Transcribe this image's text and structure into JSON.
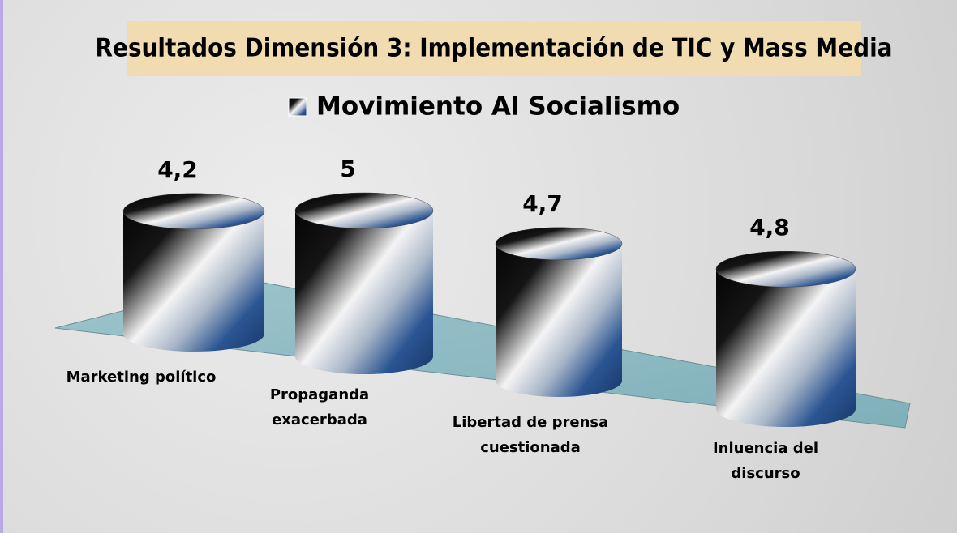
{
  "chart_data": {
    "type": "cylinder-bar",
    "title": "Resultados Dimensión 3: Implementación de TIC y Mass Media",
    "categories": [
      "Marketing político",
      "Propaganda exacerbada",
      "Libertad de prensa cuestionada",
      "Inluencia del discurso"
    ],
    "series": [
      {
        "name": "Movimiento Al Socialismo",
        "color": "#1f4e8c",
        "values": [
          4.2,
          5,
          4.7,
          4.8
        ],
        "value_labels": [
          "4,2",
          "5",
          "4,7",
          "4,8"
        ]
      }
    ]
  }
}
